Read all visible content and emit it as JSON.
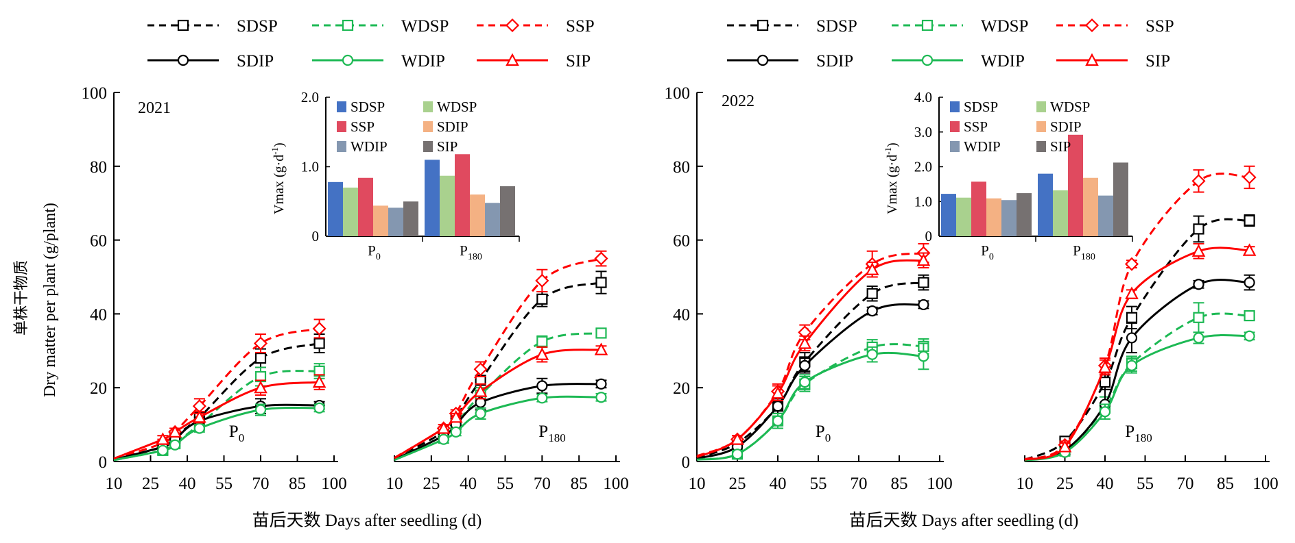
{
  "legend": {
    "entries": [
      {
        "id": "SDSP",
        "label": "SDSP",
        "color": "#000000",
        "dash": true,
        "marker": "square"
      },
      {
        "id": "WDSP",
        "label": "WDSP",
        "color": "#1db954",
        "dash": true,
        "marker": "square"
      },
      {
        "id": "SSP",
        "label": "SSP",
        "color": "#ff0000",
        "dash": true,
        "marker": "diamond"
      },
      {
        "id": "SDIP",
        "label": "SDIP",
        "color": "#000000",
        "dash": false,
        "marker": "circle"
      },
      {
        "id": "WDIP",
        "label": "WDIP",
        "color": "#1db954",
        "dash": false,
        "marker": "circle"
      },
      {
        "id": "SIP",
        "label": "SIP",
        "color": "#ff0000",
        "dash": false,
        "marker": "triangle"
      }
    ]
  },
  "labels": {
    "ylabel_cn": "单株干物质",
    "ylabel_en": "Dry matter per plant (g/plant)",
    "xlabel": "苗后天数 Days after seedling (d)",
    "p0": "P",
    "p0_sub": "0",
    "p180": "P",
    "p180_sub": "180"
  },
  "chart_data": [
    {
      "type": "line",
      "year": "2021",
      "ylim": [
        0,
        100
      ],
      "yticks": [
        0,
        20,
        40,
        60,
        80,
        100
      ],
      "xticks": [
        10,
        25,
        40,
        55,
        70,
        85,
        100
      ],
      "sub_panels": [
        {
          "label": "P0",
          "x": [
            10,
            30,
            35,
            45,
            70,
            94
          ],
          "series": [
            {
              "name": "SDSP",
              "values": [
                0.6,
                4,
                7,
                12,
                28,
                32
              ],
              "err": [
                0.3,
                1,
                1,
                1.5,
                2.5,
                2.5
              ]
            },
            {
              "name": "WDSP",
              "values": [
                0.4,
                3,
                5,
                10,
                23,
                24.5
              ],
              "err": [
                0.3,
                1,
                1,
                1.5,
                2.5,
                2
              ]
            },
            {
              "name": "SSP",
              "values": [
                0.7,
                5,
                8,
                15,
                32,
                36
              ],
              "err": [
                0.3,
                1,
                1,
                2,
                2.5,
                2.5
              ]
            },
            {
              "name": "SDIP",
              "values": [
                0.5,
                4,
                6,
                11,
                15,
                15.2
              ],
              "err": [
                0.3,
                1,
                1,
                1,
                2,
                1
              ]
            },
            {
              "name": "WDIP",
              "values": [
                0.4,
                3,
                4.5,
                9,
                14,
                14.5
              ],
              "err": [
                0.3,
                1,
                1,
                1,
                1.5,
                1
              ]
            },
            {
              "name": "SIP",
              "values": [
                0.8,
                6,
                8,
                12,
                20,
                21.5
              ],
              "err": [
                0.3,
                1,
                1,
                1.5,
                2,
                2
              ]
            }
          ]
        },
        {
          "label": "P180",
          "x": [
            10,
            30,
            35,
            45,
            70,
            94
          ],
          "series": [
            {
              "name": "SDSP",
              "values": [
                0.8,
                8,
                12,
                22,
                44,
                48.5
              ],
              "err": [
                0.3,
                1,
                1,
                3,
                2,
                3
              ]
            },
            {
              "name": "WDSP",
              "values": [
                0.6,
                7,
                10,
                18,
                32.5,
                34.8
              ],
              "err": [
                0.3,
                1,
                1,
                2,
                1.5,
                1
              ]
            },
            {
              "name": "SSP",
              "values": [
                1,
                9,
                13,
                25,
                49,
                55
              ],
              "err": [
                0.3,
                1,
                1,
                2,
                3,
                2
              ]
            },
            {
              "name": "SDIP",
              "values": [
                0.5,
                7,
                10,
                16,
                20.5,
                21
              ],
              "err": [
                0.3,
                1,
                1,
                2,
                2,
                1
              ]
            },
            {
              "name": "WDIP",
              "values": [
                0.4,
                6,
                8,
                13,
                17.2,
                17.4
              ],
              "err": [
                0.3,
                1,
                1,
                1.5,
                1,
                1
              ]
            },
            {
              "name": "SIP",
              "values": [
                0.9,
                9,
                12,
                19,
                29,
                30.3
              ],
              "err": [
                0.3,
                1,
                1,
                2,
                2,
                1
              ]
            }
          ]
        }
      ],
      "inset": {
        "type": "bar",
        "ylabel": "Vmax (g·d",
        "ylabel_sup": "-1",
        "ylim": [
          0,
          2.0
        ],
        "ytick_labels": [
          "0",
          "1.0",
          "2.0"
        ],
        "categories": [
          {
            "main": "P",
            "sub": "0"
          },
          {
            "main": "P",
            "sub": "180"
          }
        ],
        "series": [
          {
            "name": "SDSP",
            "color": "#4472c4",
            "values": [
              0.78,
              1.1
            ]
          },
          {
            "name": "WDSP",
            "color": "#a9d18e",
            "values": [
              0.7,
              0.87
            ]
          },
          {
            "name": "SSP",
            "color": "#e04a5f",
            "values": [
              0.84,
              1.18
            ]
          },
          {
            "name": "SDIP",
            "color": "#f4b183",
            "values": [
              0.44,
              0.6
            ]
          },
          {
            "name": "WDIP",
            "color": "#8497b0",
            "values": [
              0.41,
              0.48
            ]
          },
          {
            "name": "SIP",
            "color": "#767171",
            "values": [
              0.5,
              0.72
            ]
          }
        ]
      }
    },
    {
      "type": "line",
      "year": "2022",
      "ylim": [
        0,
        100
      ],
      "yticks": [
        0,
        20,
        40,
        60,
        80,
        100
      ],
      "xticks": [
        10,
        25,
        40,
        55,
        70,
        85,
        100
      ],
      "sub_panels": [
        {
          "label": "P0",
          "x": [
            10,
            25,
            40,
            50,
            75,
            94
          ],
          "series": [
            {
              "name": "SDSP",
              "values": [
                1,
                5,
                15,
                27,
                45.5,
                48.5
              ],
              "err": [
                0.5,
                1,
                2,
                2.5,
                2,
                2
              ]
            },
            {
              "name": "WDSP",
              "values": [
                0.6,
                2,
                11,
                21,
                31,
                31.2
              ],
              "err": [
                0.3,
                1,
                2,
                2,
                2,
                2
              ]
            },
            {
              "name": "SSP",
              "values": [
                1.5,
                6,
                19,
                35,
                53.5,
                56.5
              ],
              "err": [
                0.5,
                1,
                2,
                2,
                3.5,
                2.5
              ]
            },
            {
              "name": "SDIP",
              "values": [
                0.8,
                4,
                15,
                26,
                40.8,
                42.5
              ],
              "err": [
                0.5,
                1,
                2,
                2,
                1,
                1
              ]
            },
            {
              "name": "WDIP",
              "values": [
                0.5,
                2,
                11,
                21.5,
                29,
                28.5
              ],
              "err": [
                0.3,
                1,
                2,
                2,
                2,
                3.5
              ]
            },
            {
              "name": "SIP",
              "values": [
                1.2,
                6,
                18.5,
                32,
                52,
                54.5
              ],
              "err": [
                0.5,
                1,
                2,
                2,
                2,
                2
              ]
            }
          ]
        },
        {
          "label": "P180",
          "x": [
            10,
            25,
            40,
            50,
            75,
            94
          ],
          "series": [
            {
              "name": "SDSP",
              "values": [
                0.5,
                5.5,
                21.5,
                39,
                63,
                65.3
              ],
              "err": [
                0.3,
                1,
                2,
                3,
                3.5,
                1.5
              ]
            },
            {
              "name": "WDSP",
              "values": [
                0.3,
                3,
                14.5,
                26.5,
                39,
                39.5
              ],
              "err": [
                0.3,
                1,
                3,
                2,
                4,
                1
              ]
            },
            {
              "name": "SSP",
              "values": [
                0.6,
                4.5,
                26,
                53.5,
                76,
                77
              ],
              "err": [
                0.3,
                1,
                2,
                1,
                3,
                3
              ]
            },
            {
              "name": "SDIP",
              "values": [
                0.4,
                3,
                15.5,
                33.5,
                48,
                48.5
              ],
              "err": [
                0.3,
                1,
                4,
                4,
                1,
                2
              ]
            },
            {
              "name": "WDIP",
              "values": [
                0.3,
                2.5,
                13.5,
                26,
                33.5,
                34
              ],
              "err": [
                0.3,
                1,
                2,
                2,
                1.5,
                1
              ]
            },
            {
              "name": "SIP",
              "values": [
                0.5,
                4,
                25.5,
                45.5,
                57,
                57.2
              ],
              "err": [
                0.3,
                1,
                2,
                1,
                2,
                1
              ]
            }
          ]
        }
      ],
      "inset": {
        "type": "bar",
        "ylabel": "Vmax (g·d",
        "ylabel_sup": "-1",
        "ylim": [
          0,
          4.0
        ],
        "ytick_labels": [
          "0",
          "1.0",
          "2.0",
          "3.0",
          "4.0"
        ],
        "categories": [
          {
            "main": "P",
            "sub": "0"
          },
          {
            "main": "P",
            "sub": "180"
          }
        ],
        "series": [
          {
            "name": "SDSP",
            "color": "#4472c4",
            "values": [
              1.22,
              1.8
            ]
          },
          {
            "name": "WDSP",
            "color": "#a9d18e",
            "values": [
              1.11,
              1.32
            ]
          },
          {
            "name": "SSP",
            "color": "#e04a5f",
            "values": [
              1.57,
              2.92
            ]
          },
          {
            "name": "SDIP",
            "color": "#f4b183",
            "values": [
              1.09,
              1.68
            ]
          },
          {
            "name": "WDIP",
            "color": "#8497b0",
            "values": [
              1.04,
              1.17
            ]
          },
          {
            "name": "SIP",
            "color": "#767171",
            "values": [
              1.24,
              2.12
            ]
          }
        ]
      }
    }
  ]
}
